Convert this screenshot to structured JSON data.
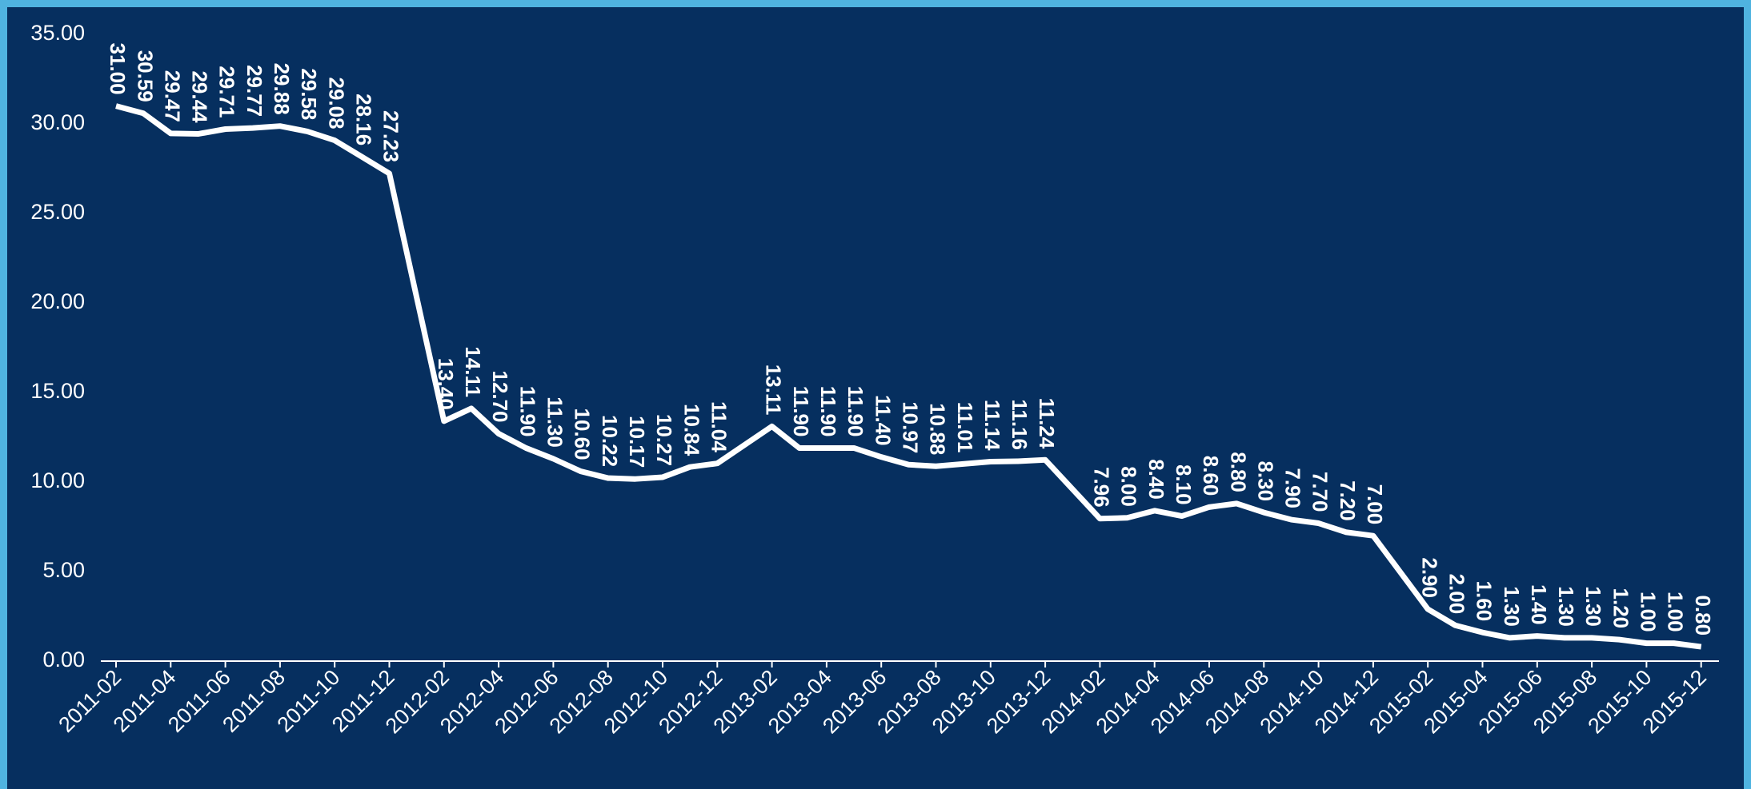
{
  "chart_data": {
    "type": "line",
    "categories": [
      "2011-02",
      null,
      "2011-04",
      null,
      "2011-06",
      null,
      "2011-08",
      null,
      "2011-10",
      null,
      "2011-12",
      null,
      "2012-02",
      null,
      "2012-04",
      null,
      "2012-06",
      null,
      "2012-08",
      null,
      "2012-10",
      null,
      "2012-12",
      null,
      "2013-02",
      null,
      "2013-04",
      null,
      "2013-06",
      null,
      "2013-08",
      null,
      "2013-10",
      null,
      "2013-12",
      null,
      "2014-02",
      null,
      "2014-04",
      null,
      "2014-06",
      null,
      "2014-08",
      null,
      "2014-10",
      null,
      "2014-12",
      null,
      "2015-02",
      null,
      "2015-04",
      null,
      "2015-06",
      null,
      "2015-08",
      null,
      "2015-10",
      null,
      "2015-12"
    ],
    "values": [
      31.0,
      30.59,
      29.47,
      29.44,
      29.71,
      29.77,
      29.88,
      29.58,
      29.08,
      28.16,
      27.23,
      null,
      13.4,
      14.11,
      12.7,
      11.9,
      11.3,
      10.6,
      10.22,
      10.17,
      10.27,
      10.84,
      11.04,
      null,
      13.11,
      11.9,
      11.9,
      11.9,
      11.4,
      10.97,
      10.88,
      11.01,
      11.14,
      11.16,
      11.24,
      null,
      7.96,
      8.0,
      8.4,
      8.1,
      8.6,
      8.8,
      8.3,
      7.9,
      7.7,
      7.2,
      7.0,
      null,
      2.9,
      2.0,
      1.6,
      1.3,
      1.4,
      1.3,
      1.3,
      1.2,
      1.0,
      1.0,
      0.8
    ],
    "value_labels": [
      "31.00",
      "30.59",
      "29.47",
      "29.44",
      "29.71",
      "29.77",
      "29.88",
      "29.58",
      "29.08",
      "28.16",
      "27.23",
      null,
      "13.40",
      "14.11",
      "12.70",
      "11.90",
      "11.30",
      "10.60",
      "10.22",
      "10.17",
      "10.27",
      "10.84",
      "11.04",
      null,
      "13.11",
      "11.90",
      "11.90",
      "11.90",
      "11.40",
      "10.97",
      "10.88",
      "11.01",
      "11.14",
      "11.16",
      "11.24",
      null,
      "7.96",
      "8.00",
      "8.40",
      "8.10",
      "8.60",
      "8.80",
      "8.30",
      "7.90",
      "7.70",
      "7.20",
      "7.00",
      null,
      "2.90",
      "2.00",
      "1.60",
      "1.30",
      "1.40",
      "1.30",
      "1.30",
      "1.20",
      "1.00",
      "1.00",
      "0.80"
    ],
    "color": "#ffffff",
    "span_gaps": true,
    "ylim": [
      0,
      35
    ],
    "yticks": [
      {
        "value": 0,
        "label": "0.00"
      },
      {
        "value": 5,
        "label": "5.00"
      },
      {
        "value": 10,
        "label": "10.00"
      },
      {
        "value": 15,
        "label": "15.00"
      },
      {
        "value": 20,
        "label": "20.00"
      },
      {
        "value": 25,
        "label": "25.00"
      },
      {
        "value": 30,
        "label": "30.00"
      },
      {
        "value": 35,
        "label": "35.00"
      }
    ]
  }
}
